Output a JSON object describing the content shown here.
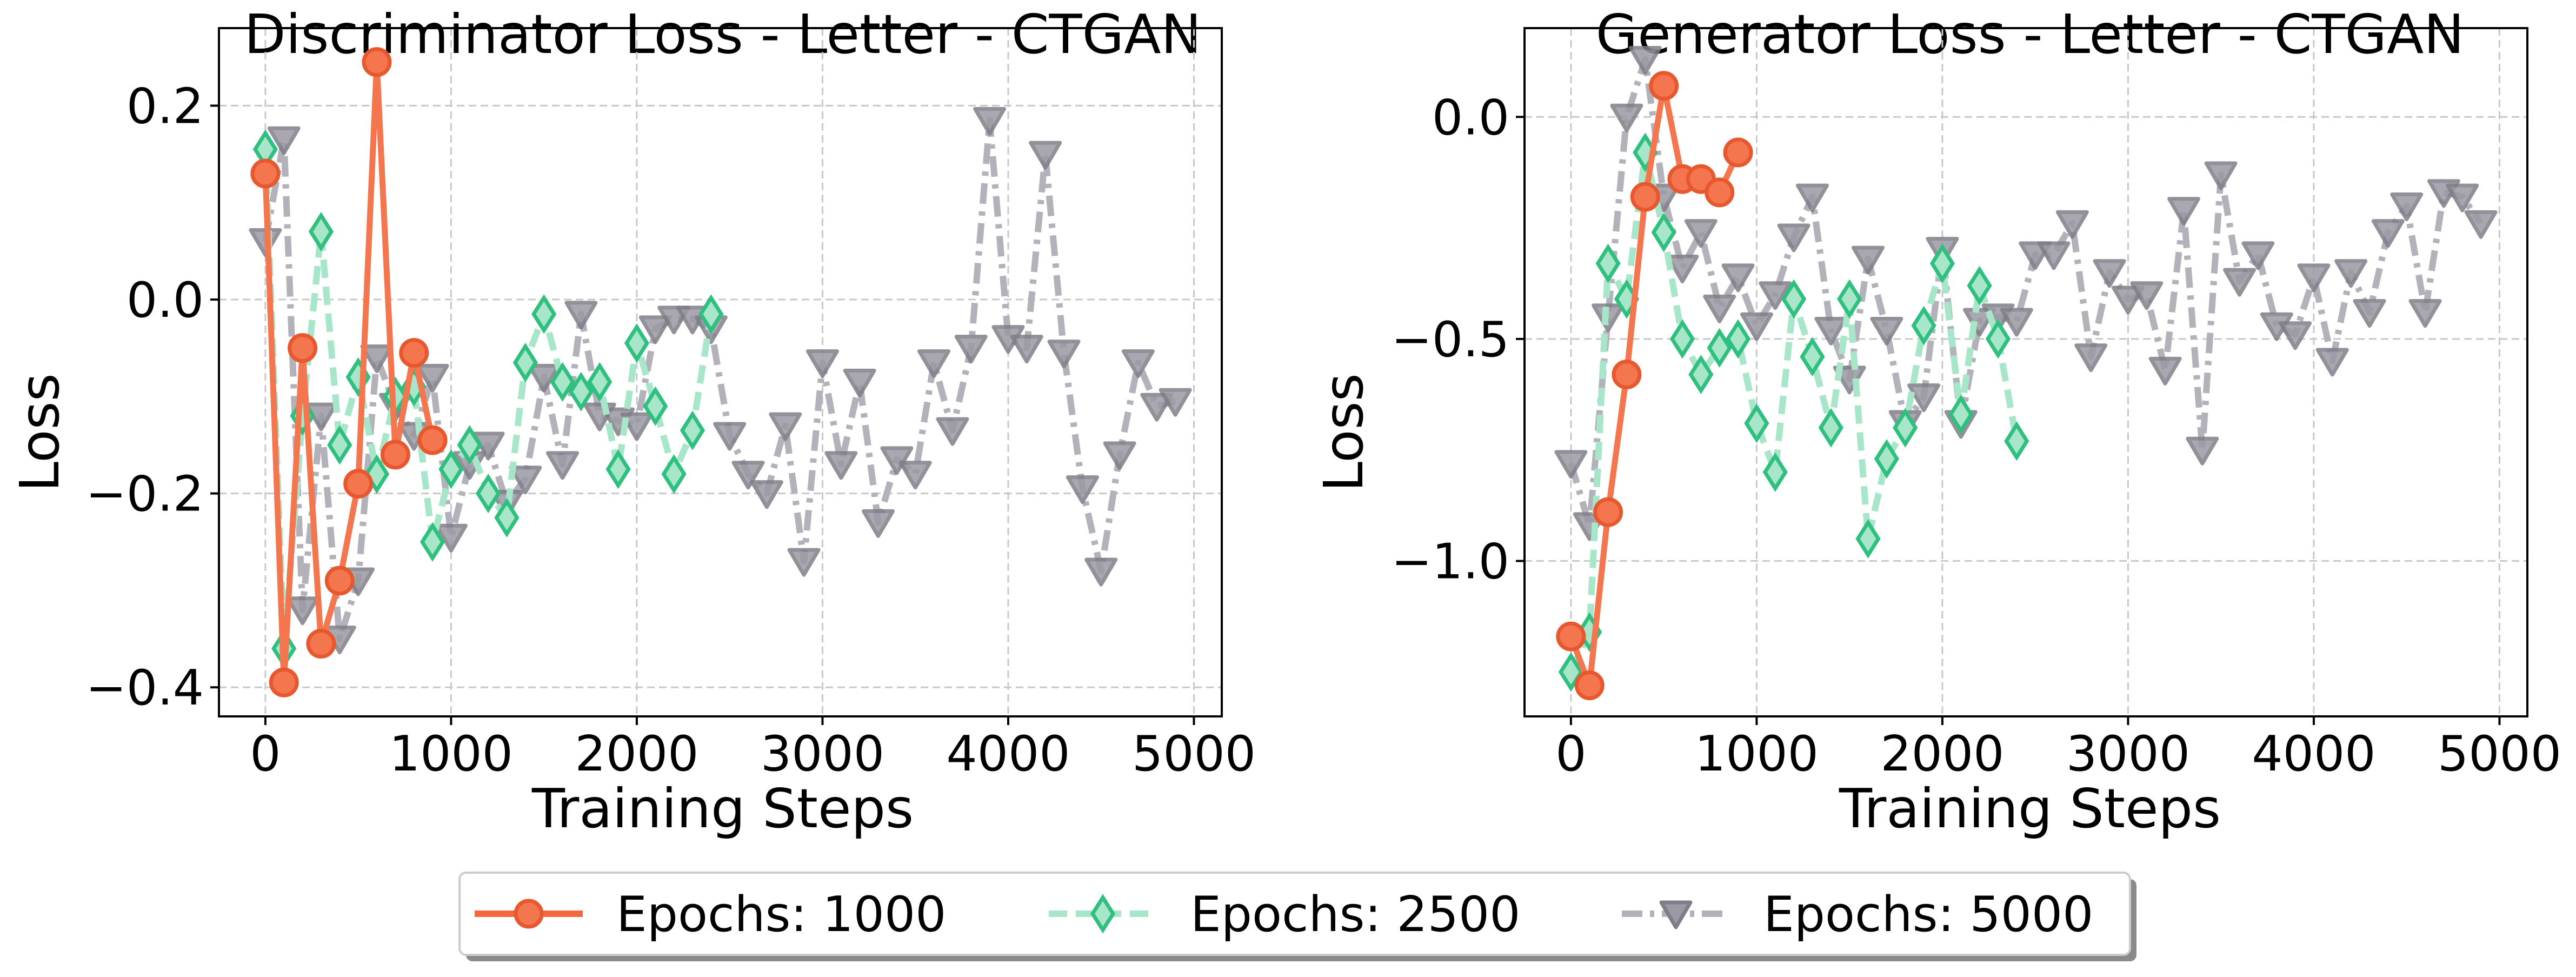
{
  "chart_data": [
    {
      "type": "line",
      "title": "Discriminator Loss - Letter - CTGAN",
      "xlabel": "Training Steps",
      "ylabel": "Loss",
      "xlim": [
        -250,
        5150
      ],
      "ylim": [
        -0.43,
        0.28
      ],
      "xticks": [
        0,
        1000,
        2000,
        3000,
        4000,
        5000
      ],
      "xtick_labels": [
        "0",
        "1000",
        "2000",
        "3000",
        "4000",
        "5000"
      ],
      "yticks": [
        0.2,
        0.0,
        -0.2,
        -0.4
      ],
      "ytick_labels": [
        "0.2",
        "0.0",
        "−0.2",
        "−0.4"
      ],
      "grid": true,
      "series": [
        {
          "name": "Epochs: 5000",
          "x": [
            0,
            100,
            200,
            300,
            400,
            500,
            600,
            700,
            800,
            900,
            1000,
            1100,
            1200,
            1300,
            1400,
            1500,
            1600,
            1700,
            1800,
            1900,
            2000,
            2100,
            2200,
            2300,
            2400,
            2500,
            2600,
            2700,
            2800,
            2900,
            3000,
            3100,
            3200,
            3300,
            3400,
            3500,
            3600,
            3700,
            3800,
            3900,
            4000,
            4100,
            4200,
            4300,
            4400,
            4500,
            4600,
            4700,
            4800,
            4900
          ],
          "y": [
            0.06,
            0.165,
            -0.32,
            -0.12,
            -0.35,
            -0.29,
            -0.06,
            -0.11,
            -0.14,
            -0.08,
            -0.245,
            -0.17,
            -0.15,
            -0.21,
            -0.185,
            -0.08,
            -0.17,
            -0.015,
            -0.12,
            -0.125,
            -0.13,
            -0.03,
            -0.02,
            -0.02,
            -0.03,
            -0.14,
            -0.18,
            -0.2,
            -0.13,
            -0.27,
            -0.065,
            -0.17,
            -0.085,
            -0.23,
            -0.165,
            -0.18,
            -0.065,
            -0.135,
            -0.05,
            0.185,
            -0.04,
            -0.05,
            0.15,
            -0.055,
            -0.195,
            -0.28,
            -0.16,
            -0.065,
            -0.11,
            -0.105
          ],
          "color": "#b3b1b9",
          "marker": "triangle-down-icon",
          "line_style": "dashdot"
        },
        {
          "name": "Epochs: 2500",
          "x": [
            0,
            100,
            200,
            300,
            400,
            500,
            600,
            700,
            800,
            900,
            1000,
            1100,
            1200,
            1300,
            1400,
            1500,
            1600,
            1700,
            1800,
            1900,
            2000,
            2100,
            2200,
            2300,
            2400
          ],
          "y": [
            0.155,
            -0.36,
            -0.12,
            0.07,
            -0.15,
            -0.08,
            -0.18,
            -0.1,
            -0.09,
            -0.25,
            -0.175,
            -0.15,
            -0.2,
            -0.225,
            -0.065,
            -0.015,
            -0.085,
            -0.095,
            -0.085,
            -0.175,
            -0.045,
            -0.11,
            -0.18,
            -0.135,
            -0.015
          ],
          "color": "#3dcc8e",
          "fill": "#a8e6c9",
          "marker": "diamond-icon",
          "line_style": "dashed"
        },
        {
          "name": "Epochs: 1000",
          "x": [
            0,
            100,
            200,
            300,
            400,
            500,
            600,
            700,
            800,
            900
          ],
          "y": [
            0.13,
            -0.395,
            -0.05,
            -0.355,
            -0.29,
            -0.19,
            0.245,
            -0.16,
            -0.055,
            -0.145
          ],
          "color": "#f4683f",
          "fill": "#f4764f",
          "marker": "circle-icon",
          "line_style": "solid"
        }
      ]
    },
    {
      "type": "line",
      "title": "Generator Loss - Letter - CTGAN",
      "xlabel": "Training Steps",
      "ylabel": "Loss",
      "xlim": [
        -250,
        5150
      ],
      "ylim": [
        -1.35,
        0.2
      ],
      "xticks": [
        0,
        1000,
        2000,
        3000,
        4000,
        5000
      ],
      "xtick_labels": [
        "0",
        "1000",
        "2000",
        "3000",
        "4000",
        "5000"
      ],
      "yticks": [
        0.0,
        -0.5,
        -1.0
      ],
      "ytick_labels": [
        "0.0",
        "−0.5",
        "−1.0"
      ],
      "grid": true,
      "series": [
        {
          "name": "Epochs: 5000",
          "x": [
            0,
            100,
            200,
            300,
            400,
            500,
            600,
            700,
            800,
            900,
            1000,
            1100,
            1200,
            1300,
            1400,
            1500,
            1600,
            1700,
            1800,
            1900,
            2000,
            2100,
            2200,
            2300,
            2400,
            2500,
            2600,
            2700,
            2800,
            2900,
            3000,
            3100,
            3200,
            3300,
            3400,
            3500,
            3600,
            3700,
            3800,
            3900,
            4000,
            4100,
            4200,
            4300,
            4400,
            4500,
            4600,
            4700,
            4800,
            4900
          ],
          "y": [
            -0.78,
            -0.92,
            -0.45,
            0.0,
            0.13,
            -0.18,
            -0.34,
            -0.26,
            -0.43,
            -0.36,
            -0.47,
            -0.4,
            -0.27,
            -0.18,
            -0.48,
            -0.59,
            -0.32,
            -0.48,
            -0.69,
            -0.63,
            -0.3,
            -0.69,
            -0.46,
            -0.45,
            -0.46,
            -0.31,
            -0.31,
            -0.24,
            -0.54,
            -0.35,
            -0.41,
            -0.4,
            -0.57,
            -0.21,
            -0.75,
            -0.13,
            -0.37,
            -0.31,
            -0.47,
            -0.49,
            -0.36,
            -0.55,
            -0.35,
            -0.44,
            -0.26,
            -0.2,
            -0.44,
            -0.17,
            -0.18,
            -0.24
          ],
          "color": "#b3b1b9",
          "marker": "triangle-down-icon",
          "line_style": "dashdot"
        },
        {
          "name": "Epochs: 2500",
          "x": [
            0,
            100,
            200,
            300,
            400,
            500,
            600,
            700,
            800,
            900,
            1000,
            1100,
            1200,
            1300,
            1400,
            1500,
            1600,
            1700,
            1800,
            1900,
            2000,
            2100,
            2200,
            2300,
            2400
          ],
          "y": [
            -1.25,
            -1.16,
            -0.33,
            -0.41,
            -0.08,
            -0.26,
            -0.5,
            -0.58,
            -0.52,
            -0.5,
            -0.69,
            -0.8,
            -0.41,
            -0.54,
            -0.7,
            -0.41,
            -0.95,
            -0.77,
            -0.7,
            -0.47,
            -0.33,
            -0.67,
            -0.38,
            -0.5,
            -0.73
          ],
          "color": "#3dcc8e",
          "fill": "#a8e6c9",
          "marker": "diamond-icon",
          "line_style": "dashed"
        },
        {
          "name": "Epochs: 1000",
          "x": [
            0,
            100,
            200,
            300,
            400,
            500,
            600,
            700,
            800,
            900
          ],
          "y": [
            -1.17,
            -1.28,
            -0.89,
            -0.58,
            -0.18,
            0.07,
            -0.14,
            -0.14,
            -0.17,
            -0.08
          ],
          "color": "#f4683f",
          "fill": "#f4764f",
          "marker": "circle-icon",
          "line_style": "solid"
        }
      ]
    }
  ],
  "legend": {
    "placement": "bottom-center",
    "entries": [
      {
        "label": "Epochs: 1000",
        "color": "#f4683f",
        "marker": "circle-icon",
        "line_style": "solid"
      },
      {
        "label": "Epochs: 2500",
        "color": "#3dcc8e",
        "marker": "diamond-icon",
        "line_style": "dashed"
      },
      {
        "label": "Epochs: 5000",
        "color": "#b3b1b9",
        "marker": "triangle-down-icon",
        "line_style": "dashdot"
      }
    ]
  }
}
